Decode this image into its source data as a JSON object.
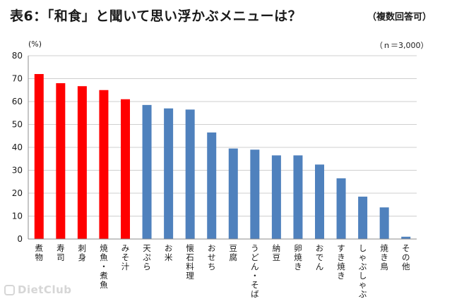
{
  "header": {
    "title": "表6：「和食」と聞いて思い浮かぶメニューは？",
    "note": "（複数回答可）"
  },
  "watermark": "DietClub",
  "chart_data": {
    "type": "bar",
    "title": "表6：「和食」と聞いて思い浮かぶメニューは？",
    "ylabel": "(%)",
    "sample_label": "（ｎ＝3,000）",
    "ylim": [
      0,
      80
    ],
    "yticks": [
      0,
      10,
      20,
      30,
      40,
      50,
      60,
      70,
      80
    ],
    "grid": true,
    "categories": [
      "煮物",
      "寿司",
      "刺身",
      "焼魚・煮魚",
      "みそ汁",
      "天ぷら",
      "お米",
      "懐石料理",
      "おせち",
      "豆腐",
      "うどん・そば",
      "納豆",
      "卵焼き",
      "おでん",
      "すき焼き",
      "しゃぶしゃぶ",
      "焼き鳥",
      "その他"
    ],
    "values": [
      72,
      68,
      66.7,
      65,
      61,
      58.5,
      57,
      56.5,
      46.5,
      39.5,
      39,
      36.5,
      36.5,
      32.5,
      26.5,
      18.5,
      13.8,
      1
    ],
    "bar_colors": [
      "#ff0000",
      "#ff0000",
      "#ff0000",
      "#ff0000",
      "#ff0000",
      "#4f81bd",
      "#4f81bd",
      "#4f81bd",
      "#4f81bd",
      "#4f81bd",
      "#4f81bd",
      "#4f81bd",
      "#4f81bd",
      "#4f81bd",
      "#4f81bd",
      "#4f81bd",
      "#4f81bd",
      "#4f81bd"
    ]
  }
}
